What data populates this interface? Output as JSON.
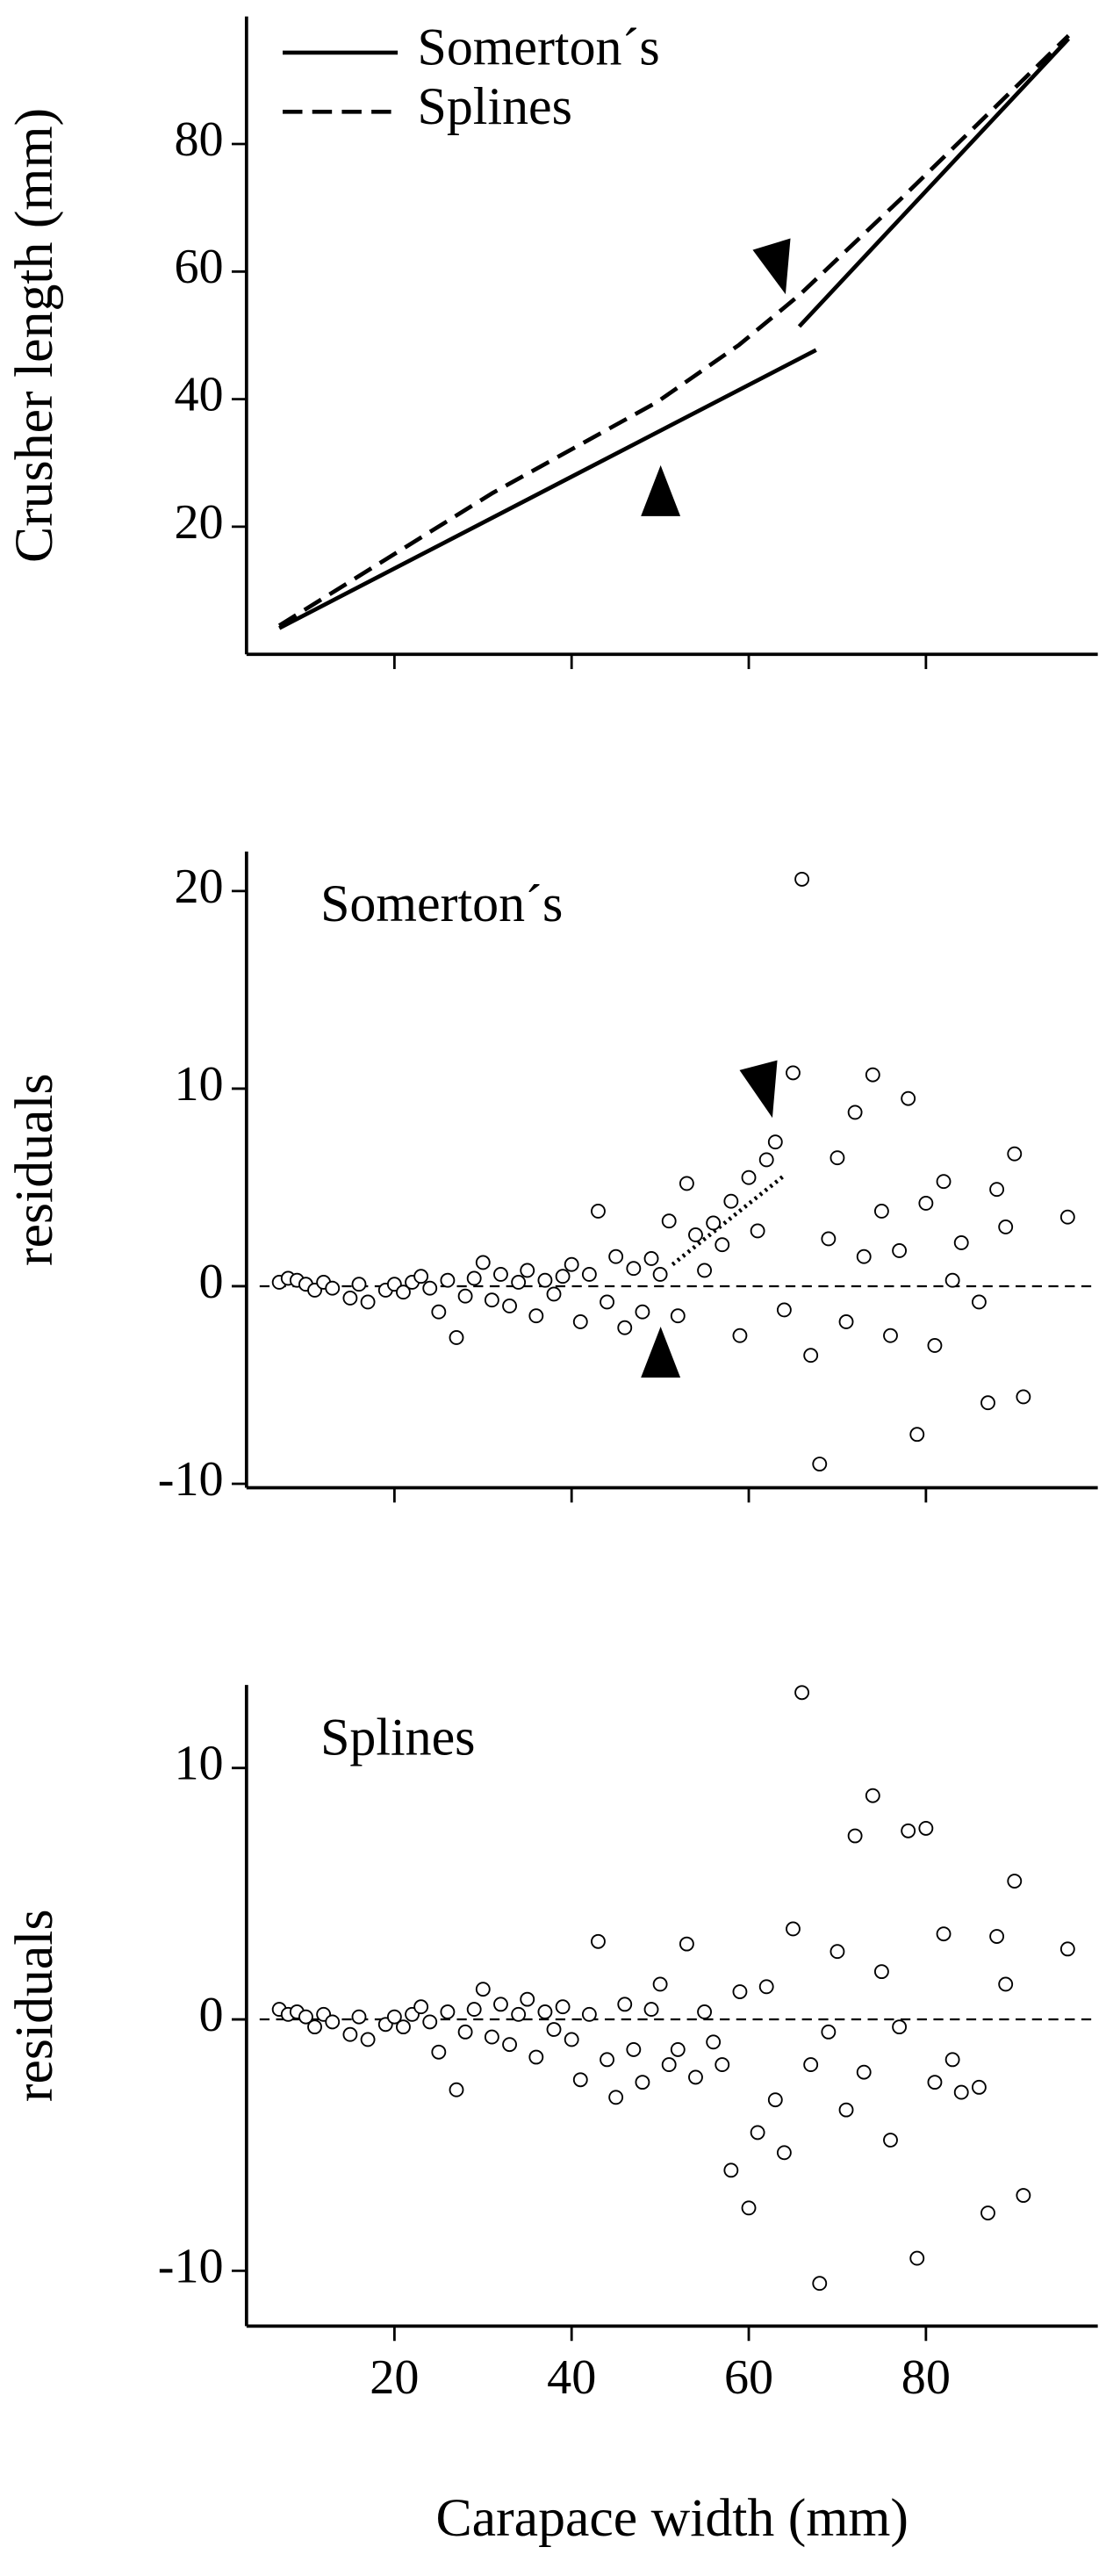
{
  "chart_data": [
    {
      "type": "line",
      "ylabel": "Crusher length (mm)",
      "ylim": [
        0,
        100
      ],
      "yticks": [
        20,
        40,
        60,
        80
      ],
      "xlim": [
        3.3,
        99.4
      ],
      "legend": "upper left",
      "series": [
        {
          "name": "Somerton´s",
          "color": "#000000",
          "dash": false,
          "x": [
            7,
            67.6,
            null,
            65.7,
            96.1
          ],
          "values": [
            4.1,
            47.7,
            null,
            51.4,
            96.5
          ]
        },
        {
          "name": "Splines",
          "color": "#000000",
          "dash": true,
          "x": [
            7,
            31.1,
            49.6,
            58.9,
            65.7,
            77.4,
            96.1
          ],
          "values": [
            4.5,
            25.3,
            39.5,
            48.5,
            56.3,
            71.7,
            97
          ]
        }
      ]
    },
    {
      "type": "scatter",
      "annotation": "Somerton´s",
      "ylabel": "residuals",
      "ylim": [
        -10.2,
        22
      ],
      "yticks": [
        -10,
        0,
        10,
        20
      ],
      "xlim": [
        3.3,
        99.4
      ],
      "hline": 0,
      "trend": {
        "x": [
          51.4,
          64
        ],
        "values": [
          1.1,
          5.6
        ]
      },
      "x": [
        7,
        8,
        9,
        10,
        11,
        12,
        13,
        15,
        16,
        17,
        19,
        20,
        21,
        22,
        23,
        24,
        25,
        26,
        27,
        28,
        29,
        30,
        31,
        32,
        33,
        34,
        35,
        36,
        37,
        38,
        39,
        40,
        41,
        42,
        43,
        44,
        45,
        46,
        47,
        48,
        49,
        50,
        51,
        52,
        53,
        54,
        55,
        56,
        57,
        58,
        59,
        60,
        61,
        62,
        63,
        64,
        65,
        66,
        67,
        68,
        69,
        70,
        71,
        72,
        73,
        74,
        75,
        76,
        77,
        78,
        79,
        80,
        81,
        82,
        83,
        84,
        86,
        87,
        88,
        89,
        90,
        91,
        96
      ],
      "values": [
        0.2,
        0.4,
        0.3,
        0.1,
        -0.2,
        0.2,
        -0.1,
        -0.6,
        0.1,
        -0.8,
        -0.2,
        0.1,
        -0.3,
        0.2,
        0.5,
        -0.1,
        -1.3,
        0.3,
        -2.6,
        -0.5,
        0.4,
        1.2,
        -0.7,
        0.6,
        -1.0,
        0.2,
        0.8,
        -1.5,
        0.3,
        -0.4,
        0.5,
        1.1,
        -1.8,
        0.6,
        3.8,
        -0.8,
        1.5,
        -2.1,
        0.9,
        -1.3,
        1.4,
        0.6,
        3.3,
        -1.5,
        5.2,
        2.6,
        0.8,
        3.2,
        2.1,
        4.3,
        -2.5,
        5.5,
        2.8,
        6.4,
        7.3,
        -1.2,
        10.8,
        20.6,
        -3.5,
        -9.0,
        2.4,
        6.5,
        -1.8,
        8.8,
        1.5,
        10.7,
        3.8,
        -2.5,
        1.8,
        9.5,
        -7.5,
        4.2,
        -3.0,
        5.3,
        0.3,
        2.2,
        -0.8,
        -5.9,
        4.9,
        3.0,
        6.7,
        -5.6,
        3.5
      ]
    },
    {
      "type": "scatter",
      "annotation": "Splines",
      "ylabel": "residuals",
      "xlabel": "Carapace width (mm)",
      "ylim": [
        -12.2,
        13.3
      ],
      "yticks": [
        -10,
        0,
        10
      ],
      "xlim": [
        3.3,
        99.4
      ],
      "xticks": [
        20,
        40,
        60,
        80
      ],
      "hline": 0,
      "x": [
        7,
        8,
        9,
        10,
        11,
        12,
        13,
        15,
        16,
        17,
        19,
        20,
        21,
        22,
        23,
        24,
        25,
        26,
        27,
        28,
        29,
        30,
        31,
        32,
        33,
        34,
        35,
        36,
        37,
        38,
        39,
        40,
        41,
        42,
        43,
        44,
        45,
        46,
        47,
        48,
        49,
        50,
        51,
        52,
        53,
        54,
        55,
        56,
        57,
        58,
        59,
        60,
        61,
        62,
        63,
        64,
        65,
        66,
        67,
        68,
        69,
        70,
        71,
        72,
        73,
        74,
        75,
        76,
        77,
        78,
        79,
        80,
        81,
        82,
        83,
        84,
        86,
        87,
        88,
        89,
        90,
        91,
        96
      ],
      "values": [
        0.4,
        0.2,
        0.3,
        0.1,
        -0.3,
        0.2,
        -0.1,
        -0.6,
        0.1,
        -0.8,
        -0.2,
        0.1,
        -0.3,
        0.2,
        0.5,
        -0.1,
        -1.3,
        0.3,
        -2.8,
        -0.5,
        0.4,
        1.2,
        -0.7,
        0.6,
        -1.0,
        0.2,
        0.8,
        -1.5,
        0.3,
        -0.4,
        0.5,
        -0.8,
        -2.4,
        0.2,
        3.1,
        -1.6,
        -3.1,
        0.6,
        -1.2,
        -2.5,
        0.4,
        1.4,
        -1.8,
        -1.2,
        3.0,
        -2.3,
        0.3,
        -0.9,
        -1.8,
        -6.0,
        1.1,
        -7.5,
        -4.5,
        1.3,
        -3.2,
        -5.3,
        3.6,
        13.0,
        -1.8,
        -10.5,
        -0.5,
        2.7,
        -3.6,
        7.3,
        -2.1,
        8.9,
        1.9,
        -4.8,
        -0.3,
        7.5,
        -9.5,
        7.6,
        -2.5,
        3.4,
        -1.6,
        -2.9,
        -2.7,
        -7.7,
        3.3,
        1.4,
        5.5,
        -7.0,
        2.8
      ]
    }
  ]
}
